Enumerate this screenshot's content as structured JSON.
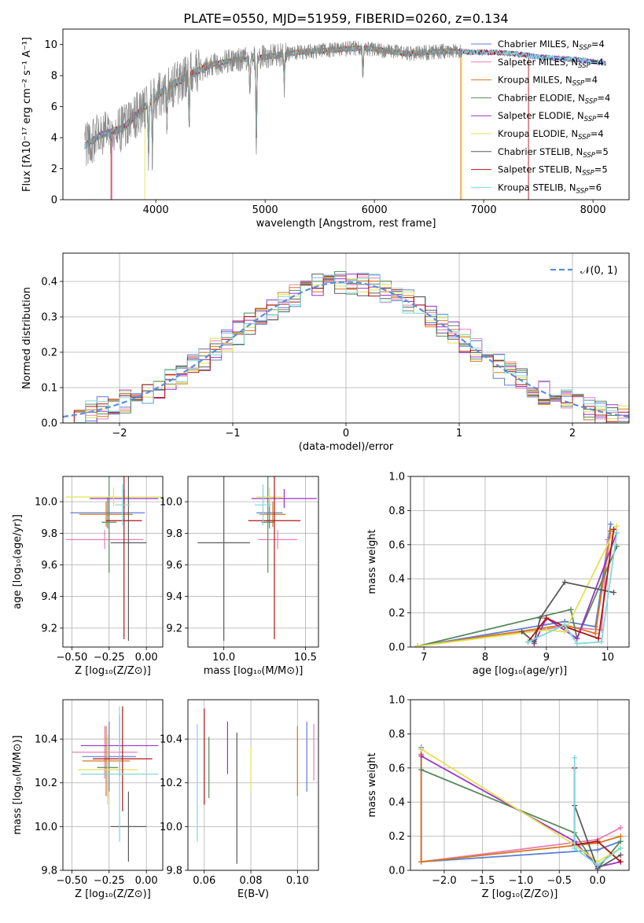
{
  "figure": {
    "title": "PLATE=0550, MJD=51959, FIBERID=0260, z=0.134"
  },
  "colors": {
    "series": [
      "#5b7fd0",
      "#e87fb5",
      "#d7781d",
      "#5a8a5a",
      "#9a33c8",
      "#e1e153",
      "#5a5a5a",
      "#b01515",
      "#7fd8de"
    ],
    "data": "#888888",
    "gaussian": "#5b8fd8",
    "grid": "#b0b0b0"
  },
  "legend_labels": [
    {
      "base": "Chabrier MILES, N",
      "sub": "SSP",
      "tail": "=4"
    },
    {
      "base": "Salpeter MILES, N",
      "sub": "SSP",
      "tail": "=4"
    },
    {
      "base": "Kroupa MILES, N",
      "sub": "SSP",
      "tail": "=4"
    },
    {
      "base": "Chabrier ELODIE, N",
      "sub": "SSP",
      "tail": "=4"
    },
    {
      "base": "Salpeter ELODIE, N",
      "sub": "SSP",
      "tail": "=4"
    },
    {
      "base": "Kroupa ELODIE, N",
      "sub": "SSP",
      "tail": "=4"
    },
    {
      "base": "Chabrier STELIB, N",
      "sub": "SSP",
      "tail": "=5"
    },
    {
      "base": "Salpeter STELIB, N",
      "sub": "SSP",
      "tail": "=5"
    },
    {
      "base": "Kroupa STELIB, N",
      "sub": "SSP",
      "tail": "=6"
    }
  ],
  "chart_data": [
    {
      "id": "spectrum",
      "type": "line",
      "xlabel": "wavelength [Angstrom, rest frame]",
      "ylabel": "Flux [fλ10⁻¹⁷ erg cm⁻² s⁻¹ A⁻¹]",
      "xlim": [
        3150,
        8330
      ],
      "ylim": [
        0,
        11
      ],
      "xticks": [
        4000,
        5000,
        6000,
        7000,
        8000
      ],
      "yticks": [
        0,
        2,
        4,
        6,
        8,
        10
      ],
      "grid": false,
      "legend": "upper-right",
      "continuum": {
        "x": [
          3350,
          3500,
          3700,
          3900,
          4100,
          4300,
          4500,
          4700,
          4900,
          5100,
          5300,
          5500,
          5700,
          5900,
          6100,
          6300,
          6500,
          6700,
          6900,
          7100,
          7300,
          7500,
          7700,
          7900,
          8100
        ],
        "y": [
          3.5,
          4.2,
          4.6,
          6.0,
          7.2,
          8.0,
          8.7,
          9.0,
          9.1,
          9.3,
          9.5,
          9.6,
          9.7,
          9.8,
          9.6,
          9.4,
          9.5,
          9.6,
          9.5,
          9.5,
          9.4,
          9.2,
          9.1,
          9.0,
          8.8
        ]
      },
      "data_end": 6800,
      "model_end": 7420,
      "features": [
        {
          "x": 3934,
          "y": 2.4
        },
        {
          "x": 3969,
          "y": 3.0
        },
        {
          "x": 4102,
          "y": 5.5
        },
        {
          "x": 4305,
          "y": 4.2
        },
        {
          "x": 4861,
          "y": 6.6
        },
        {
          "x": 4920,
          "y": 2.6
        },
        {
          "x": 5175,
          "y": 7.3
        },
        {
          "x": 5895,
          "y": 7.7
        }
      ],
      "drops": [
        {
          "series": 1,
          "x": 3600
        },
        {
          "series": 7,
          "x": 3590
        },
        {
          "series": 5,
          "x": 3900
        },
        {
          "series": 2,
          "x": 6790
        },
        {
          "series": 5,
          "x": 6800
        },
        {
          "series": 7,
          "x": 7410
        },
        {
          "series": 2,
          "x": 7420
        }
      ]
    },
    {
      "id": "residuals",
      "type": "histogram",
      "xlabel": "(data-model)/error",
      "ylabel": "Normed distribution",
      "xlim": [
        -2.5,
        2.5
      ],
      "ylim": [
        0,
        0.48
      ],
      "xticks": [
        -2,
        -1,
        0,
        1,
        2
      ],
      "yticks": [
        0.0,
        0.1,
        0.2,
        0.3,
        0.4
      ],
      "grid": true,
      "bin_width": 0.1,
      "gaussian_label": "𝒩(0, 1)",
      "gaussian": {
        "mu": 0,
        "sigma": 1
      }
    },
    {
      "id": "age-vs-Z",
      "type": "errorbar",
      "xlabel": "Z [log₁₀(Z/Z⊙)]",
      "ylabel": "age  [log₁₀(age/yr)]",
      "xlim": [
        -0.56,
        0.11
      ],
      "ylim": [
        9.08,
        10.16
      ],
      "xticks": [
        -0.5,
        -0.25,
        0.0
      ],
      "yticks": [
        9.2,
        9.4,
        9.6,
        9.8,
        10.0
      ],
      "grid": true,
      "points": [
        {
          "s": 0,
          "x": -0.26,
          "y": 9.93,
          "xe": 0.25,
          "ye": 0.1
        },
        {
          "s": 1,
          "x": -0.28,
          "y": 9.76,
          "xe": 0.26,
          "ye": 0.06
        },
        {
          "s": 2,
          "x": -0.27,
          "y": 9.92,
          "xe": 0.18,
          "ye": 0.08
        },
        {
          "s": 3,
          "x": -0.25,
          "y": 9.87,
          "xe": 0.05,
          "ye": 0.32
        },
        {
          "s": 4,
          "x": -0.15,
          "y": 10.02,
          "xe": 0.23,
          "ye": 0.06
        },
        {
          "s": 5,
          "x": -0.22,
          "y": 10.03,
          "xe": 0.32,
          "ye": 0.06
        },
        {
          "s": 6,
          "x": -0.12,
          "y": 9.74,
          "xe": 0.12,
          "ye": 0.62
        },
        {
          "s": 7,
          "x": -0.15,
          "y": 9.88,
          "xe": 0.12,
          "ye": 0.75
        },
        {
          "s": 8,
          "x": -0.16,
          "y": 9.98,
          "xe": 0.05,
          "ye": 0.13
        }
      ]
    },
    {
      "id": "age-vs-mass",
      "type": "errorbar",
      "xlabel": "mass [log₁₀(M/M⊙)]",
      "ylabel": "",
      "xlim": [
        9.78,
        10.58
      ],
      "ylim": [
        9.08,
        10.16
      ],
      "xticks": [
        10.0,
        10.5
      ],
      "yticks": [
        9.2,
        9.4,
        9.6,
        9.8,
        10.0
      ],
      "grid": true,
      "points": [
        {
          "s": 0,
          "x": 10.28,
          "y": 9.93,
          "xe": 0.08,
          "ye": 0.1
        },
        {
          "s": 1,
          "x": 10.33,
          "y": 9.76,
          "xe": 0.12,
          "ye": 0.06
        },
        {
          "s": 2,
          "x": 10.3,
          "y": 9.92,
          "xe": 0.08,
          "ye": 0.08
        },
        {
          "s": 3,
          "x": 10.27,
          "y": 9.87,
          "xe": 0.04,
          "ye": 0.32
        },
        {
          "s": 4,
          "x": 10.37,
          "y": 10.02,
          "xe": 0.2,
          "ye": 0.06
        },
        {
          "s": 5,
          "x": 10.28,
          "y": 10.03,
          "xe": 0.08,
          "ye": 0.06
        },
        {
          "s": 6,
          "x": 10.0,
          "y": 9.74,
          "xe": 0.16,
          "ye": 0.62
        },
        {
          "s": 7,
          "x": 10.31,
          "y": 9.88,
          "xe": 0.16,
          "ye": 0.75
        },
        {
          "s": 8,
          "x": 10.24,
          "y": 9.98,
          "xe": 0.05,
          "ye": 0.13
        }
      ]
    },
    {
      "id": "weight-vs-age",
      "type": "line",
      "xlabel": "age  [log₁₀(age/yr)]",
      "ylabel": "mass weight",
      "xlim": [
        6.78,
        10.35
      ],
      "ylim": [
        0,
        1
      ],
      "xticks": [
        7,
        8,
        9,
        10
      ],
      "yticks": [
        0.0,
        0.2,
        0.4,
        0.6,
        0.8,
        1.0
      ],
      "grid": true,
      "series": [
        {
          "s": 0,
          "x": [
            6.9,
            9.3,
            9.8,
            10.05
          ],
          "y": [
            0.005,
            0.15,
            0.12,
            0.72
          ]
        },
        {
          "s": 1,
          "x": [
            6.9,
            9.3,
            9.9,
            10.0
          ],
          "y": [
            0.005,
            0.12,
            0.1,
            0.63
          ]
        },
        {
          "s": 2,
          "x": [
            6.9,
            9.3,
            9.8,
            10.05
          ],
          "y": [
            0.005,
            0.13,
            0.08,
            0.68
          ]
        },
        {
          "s": 3,
          "x": [
            6.9,
            9.4,
            9.5,
            10.15
          ],
          "y": [
            0.005,
            0.22,
            0.05,
            0.59
          ]
        },
        {
          "s": 4,
          "x": [
            8.8,
            9.0,
            9.5,
            10.15
          ],
          "y": [
            0.02,
            0.17,
            0.05,
            0.67
          ]
        },
        {
          "s": 5,
          "x": [
            6.9,
            9.0,
            9.3,
            10.15
          ],
          "y": [
            0.005,
            0.1,
            0.09,
            0.71
          ]
        },
        {
          "s": 6,
          "x": [
            8.6,
            8.8,
            8.9,
            9.3,
            10.1
          ],
          "y": [
            0.09,
            0.03,
            0.17,
            0.38,
            0.32
          ]
        },
        {
          "s": 7,
          "x": [
            8.7,
            9.0,
            9.3,
            9.85,
            10.1
          ],
          "y": [
            0.03,
            0.17,
            0.12,
            0.05,
            0.69
          ]
        },
        {
          "s": 8,
          "x": [
            8.7,
            9.3,
            9.5,
            9.9,
            10.15
          ],
          "y": [
            0.03,
            0.13,
            0.02,
            0.03,
            0.67
          ]
        }
      ]
    },
    {
      "id": "mass-vs-Z",
      "type": "errorbar",
      "xlabel": "Z [log₁₀(Z/Z⊙)]",
      "ylabel": "mass [log₁₀(M/M⊙)]",
      "xlim": [
        -0.56,
        0.11
      ],
      "ylim": [
        9.8,
        10.58
      ],
      "xticks": [
        -0.5,
        -0.25,
        0.0
      ],
      "yticks": [
        9.8,
        10.0,
        10.2,
        10.4
      ],
      "grid": true,
      "points": [
        {
          "s": 0,
          "x": -0.25,
          "y": 10.32,
          "xe": 0.18,
          "ye": 0.16
        },
        {
          "s": 1,
          "x": -0.28,
          "y": 10.34,
          "xe": 0.22,
          "ye": 0.12
        },
        {
          "s": 2,
          "x": -0.27,
          "y": 10.3,
          "xe": 0.16,
          "ye": 0.16
        },
        {
          "s": 3,
          "x": -0.26,
          "y": 10.27,
          "xe": 0.07,
          "ye": 0.14
        },
        {
          "s": 4,
          "x": -0.18,
          "y": 10.37,
          "xe": 0.26,
          "ye": 0.14
        },
        {
          "s": 5,
          "x": -0.26,
          "y": 10.26,
          "xe": 0.2,
          "ye": 0.16
        },
        {
          "s": 6,
          "x": -0.12,
          "y": 10.0,
          "xe": 0.12,
          "ye": 0.16
        },
        {
          "s": 7,
          "x": -0.16,
          "y": 10.31,
          "xe": 0.2,
          "ye": 0.24
        },
        {
          "s": 8,
          "x": -0.18,
          "y": 10.24,
          "xe": 0.26,
          "ye": 0.31
        }
      ]
    },
    {
      "id": "mass-vs-EBV",
      "type": "errorbar",
      "xlabel": "E(B-V)",
      "ylabel": "",
      "xlim": [
        0.053,
        0.109
      ],
      "ylim": [
        9.8,
        10.58
      ],
      "xticks": [
        0.06,
        0.08,
        0.1
      ],
      "yticks": [
        9.8,
        10.0,
        10.2,
        10.4
      ],
      "grid": true,
      "points": [
        {
          "s": 0,
          "x": 0.104,
          "y": 10.32,
          "xe": 0,
          "ye": 0.16
        },
        {
          "s": 1,
          "x": 0.107,
          "y": 10.34,
          "xe": 0,
          "ye": 0.13
        },
        {
          "s": 2,
          "x": 0.1,
          "y": 10.3,
          "xe": 0,
          "ye": 0.16
        },
        {
          "s": 3,
          "x": 0.062,
          "y": 10.27,
          "xe": 0,
          "ye": 0.14
        },
        {
          "s": 4,
          "x": 0.07,
          "y": 10.36,
          "xe": 0,
          "ye": 0.12
        },
        {
          "s": 5,
          "x": 0.08,
          "y": 10.26,
          "xe": 0,
          "ye": 0.1
        },
        {
          "s": 6,
          "x": 0.074,
          "y": 10.13,
          "xe": 0,
          "ye": 0.3
        },
        {
          "s": 7,
          "x": 0.06,
          "y": 10.32,
          "xe": 0,
          "ye": 0.22
        },
        {
          "s": 8,
          "x": 0.057,
          "y": 10.2,
          "xe": 0,
          "ye": 0.27
        }
      ]
    },
    {
      "id": "weight-vs-Z",
      "type": "line",
      "xlabel": "Z [log₁₀(Z/Z⊙)]",
      "ylabel": "mass weight",
      "xlim": [
        -2.44,
        0.41
      ],
      "ylim": [
        0,
        1
      ],
      "xticks": [
        -2.0,
        -1.5,
        -1.0,
        -0.5,
        0.0
      ],
      "yticks": [
        0.0,
        0.2,
        0.4,
        0.6,
        0.8,
        1.0
      ],
      "grid": true,
      "series": [
        {
          "s": 0,
          "x": [
            -2.3,
            -2.3,
            0.0,
            0.3
          ],
          "y": [
            0.72,
            0.05,
            0.12,
            0.17
          ]
        },
        {
          "s": 1,
          "x": [
            -2.3,
            -2.3,
            0.0,
            0.3
          ],
          "y": [
            0.71,
            0.05,
            0.18,
            0.25
          ]
        },
        {
          "s": 2,
          "x": [
            -2.3,
            -2.3,
            0.0,
            0.3
          ],
          "y": [
            0.68,
            0.05,
            0.16,
            0.2
          ]
        },
        {
          "s": 3,
          "x": [
            -2.3,
            -0.3,
            0.0,
            0.3
          ],
          "y": [
            0.59,
            0.22,
            0.01,
            0.17
          ]
        },
        {
          "s": 4,
          "x": [
            -2.3,
            -0.3,
            0.0,
            0.3
          ],
          "y": [
            0.67,
            0.17,
            0.02,
            0.05
          ]
        },
        {
          "s": 5,
          "x": [
            -2.3,
            -0.3,
            0.0,
            0.3
          ],
          "y": [
            0.71,
            0.15,
            0.05,
            0.13
          ]
        },
        {
          "s": 6,
          "x": [
            -0.3,
            0.0,
            0.3
          ],
          "y": [
            0.38,
            0.01,
            0.09
          ]
        },
        {
          "s": 7,
          "x": [
            -0.3,
            -0.3,
            0.0,
            0.3
          ],
          "y": [
            0.6,
            0.15,
            0.17,
            0.05
          ]
        },
        {
          "s": 8,
          "x": [
            -0.3,
            -0.3,
            0.0,
            0.3
          ],
          "y": [
            0.66,
            0.13,
            0.03,
            0.13
          ]
        }
      ]
    }
  ]
}
